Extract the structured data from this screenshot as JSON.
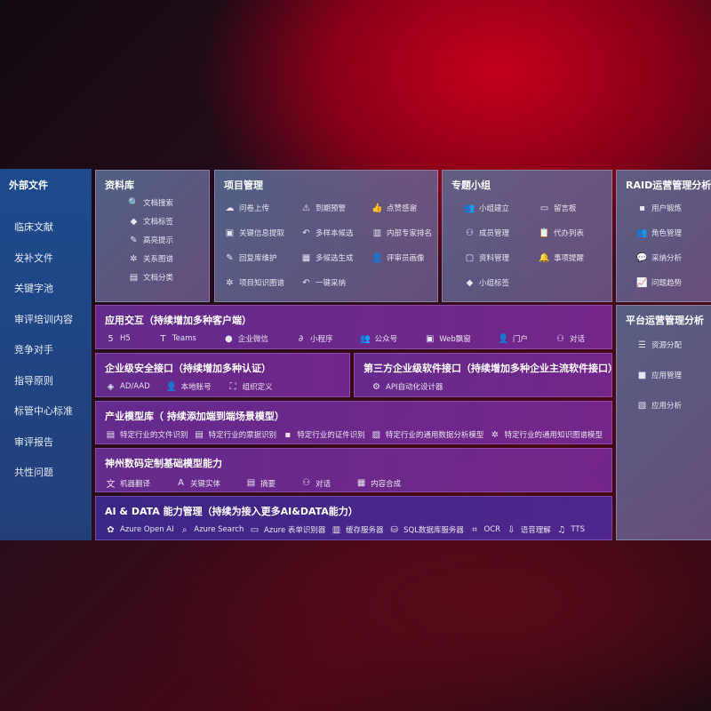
{
  "sidebar": {
    "title": "外部文件",
    "items": [
      "临床文献",
      "发补文件",
      "关键字池",
      "审评培训内容",
      "竞争对手",
      "指导原则",
      "标管中心标准",
      "审评报告",
      "共性问题"
    ]
  },
  "library": {
    "title": "资料库",
    "items": [
      {
        "icon": "file-search-icon",
        "label": "文档搜索"
      },
      {
        "icon": "tag-icon",
        "label": "文档标签"
      },
      {
        "icon": "pen-icon",
        "label": "高亮提示"
      },
      {
        "icon": "graph-icon",
        "label": "关系图谱"
      },
      {
        "icon": "document-icon",
        "label": "文档分类"
      }
    ]
  },
  "project": {
    "title": "项目管理",
    "items": [
      {
        "icon": "cloud-upload-icon",
        "label": "问卷上传"
      },
      {
        "icon": "alarm-icon",
        "label": "到期预警"
      },
      {
        "icon": "thumbs-up-icon",
        "label": "点赞感谢"
      },
      {
        "icon": "window-icon",
        "label": "关键信息提取"
      },
      {
        "icon": "reply-icon",
        "label": "多样本候选"
      },
      {
        "icon": "ranking-icon",
        "label": "内部专家排名"
      },
      {
        "icon": "pen-icon",
        "label": "回复库维护"
      },
      {
        "icon": "puzzle-icon",
        "label": "多候选生成"
      },
      {
        "icon": "user-icon",
        "label": "评审员画像"
      },
      {
        "icon": "graph-icon",
        "label": "项目知识图谱"
      },
      {
        "icon": "reply-icon",
        "label": "一键采纳"
      }
    ]
  },
  "group": {
    "title": "专题小组",
    "items": [
      {
        "icon": "users-icon",
        "label": "小组建立"
      },
      {
        "icon": "bbs-icon",
        "label": "留言板"
      },
      {
        "icon": "user-add-icon",
        "label": "成员管理"
      },
      {
        "icon": "clipboard-icon",
        "label": "代办列表"
      },
      {
        "icon": "folder-icon",
        "label": "资料管理"
      },
      {
        "icon": "bell-icon",
        "label": "事项提醒"
      },
      {
        "icon": "tag-icon",
        "label": "小组标签"
      }
    ]
  },
  "raid": {
    "title": "RAID运营管理分析",
    "items": [
      {
        "icon": "id-card-icon",
        "label": "用户锻炼"
      },
      {
        "icon": "users-icon",
        "label": "角色管理"
      },
      {
        "icon": "qa-icon",
        "label": "采纳分析"
      },
      {
        "icon": "trend-icon",
        "label": "问题趋势"
      }
    ]
  },
  "platform": {
    "title": "平台运营管理分析",
    "items": [
      {
        "icon": "list-icon",
        "label": "资源分配"
      },
      {
        "icon": "apps-icon",
        "label": "应用管理"
      },
      {
        "icon": "chart-icon",
        "label": "应用分析"
      }
    ]
  },
  "interaction": {
    "title": "应用交互（持续增加多种客户端）",
    "items": [
      {
        "icon": "html5-icon",
        "label": "H5"
      },
      {
        "icon": "teams-icon",
        "label": "Teams"
      },
      {
        "icon": "wechat-icon",
        "label": "企业微信"
      },
      {
        "icon": "miniprogram-icon",
        "label": "小程序"
      },
      {
        "icon": "users-icon",
        "label": "公众号"
      },
      {
        "icon": "window-icon",
        "label": "Web飘窗"
      },
      {
        "icon": "portal-icon",
        "label": "门户"
      },
      {
        "icon": "chat-icon",
        "label": "对话"
      }
    ]
  },
  "security": {
    "title": "企业级安全接口（持续增加多种认证）",
    "items": [
      {
        "icon": "ad-icon",
        "label": "AD/AAD"
      },
      {
        "icon": "user-icon",
        "label": "本地账号"
      },
      {
        "icon": "org-icon",
        "label": "组织定义"
      }
    ]
  },
  "thirdparty": {
    "title": "第三方企业级软件接口（持续增加多种企业主流软件接口）",
    "items": [
      {
        "icon": "gear-icon",
        "label": "API自动化设计器"
      }
    ]
  },
  "industry": {
    "title": "产业模型库（ 持续添加端到端场景模型）",
    "items": [
      {
        "icon": "file-icon",
        "label": "特定行业的文件识别"
      },
      {
        "icon": "receipt-icon",
        "label": "特定行业的票据识别"
      },
      {
        "icon": "id-card-icon",
        "label": "特定行业的证件识别"
      },
      {
        "icon": "image-icon",
        "label": "特定行业的通用数据分析模型"
      },
      {
        "icon": "graph-icon",
        "label": "特定行业的通用知识图谱模型"
      }
    ]
  },
  "base": {
    "title": "神州数码定制基础模型能力",
    "items": [
      {
        "icon": "translate-icon",
        "label": "机器翻译"
      },
      {
        "icon": "entity-icon",
        "label": "关键实体"
      },
      {
        "icon": "document-icon",
        "label": "摘要"
      },
      {
        "icon": "chat-icon",
        "label": "对话"
      },
      {
        "icon": "puzzle-icon",
        "label": "内容合成"
      }
    ]
  },
  "aidata": {
    "title": "AI & DATA 能力管理（持续为接入更多AI&DATA能力）",
    "items": [
      {
        "icon": "openai-icon",
        "label": "Azure Open AI"
      },
      {
        "icon": "search-icon",
        "label": "Azure Search"
      },
      {
        "icon": "form-icon",
        "label": "Azure 表单识别器"
      },
      {
        "icon": "cache-icon",
        "label": "缓存服务器"
      },
      {
        "icon": "database-icon",
        "label": "SQL数据库服务器"
      },
      {
        "icon": "ocr-icon",
        "label": "OCR"
      },
      {
        "icon": "mic-icon",
        "label": "语音理解"
      },
      {
        "icon": "tts-icon",
        "label": "TTS"
      }
    ]
  }
}
